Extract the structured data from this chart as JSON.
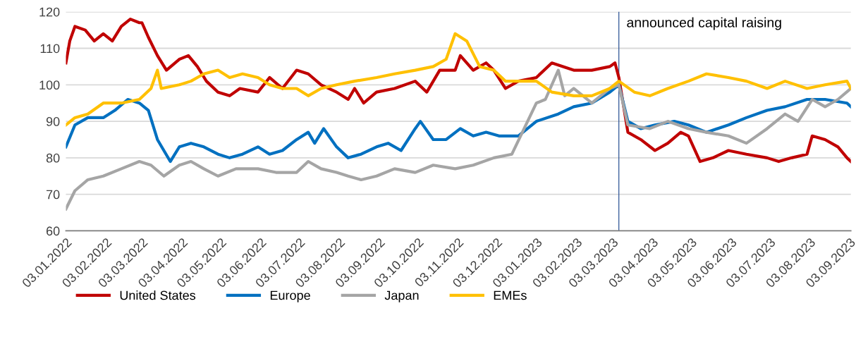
{
  "chart_data": {
    "type": "line",
    "xlim": [
      "2022-01-03",
      "2023-09-04"
    ],
    "xticks": [
      {
        "value": "2022-01-03",
        "label": "03.01.2022"
      },
      {
        "value": "2022-02-03",
        "label": "03.02.2022"
      },
      {
        "value": "2022-03-03",
        "label": "03.03.2022"
      },
      {
        "value": "2022-04-03",
        "label": "03.04.2022"
      },
      {
        "value": "2022-05-03",
        "label": "03.05.2022"
      },
      {
        "value": "2022-06-03",
        "label": "03.06.2022"
      },
      {
        "value": "2022-07-03",
        "label": "03.07.2022"
      },
      {
        "value": "2022-08-03",
        "label": "03.08.2022"
      },
      {
        "value": "2022-09-03",
        "label": "03.09.2022"
      },
      {
        "value": "2022-10-03",
        "label": "03.10.2022"
      },
      {
        "value": "2022-11-03",
        "label": "03.11.2022"
      },
      {
        "value": "2022-12-03",
        "label": "03.12.2022"
      },
      {
        "value": "2023-01-03",
        "label": "03.01.2023"
      },
      {
        "value": "2023-02-03",
        "label": "03.02.2023"
      },
      {
        "value": "2023-03-03",
        "label": "03.03.2023"
      },
      {
        "value": "2023-04-03",
        "label": "03.04.2023"
      },
      {
        "value": "2023-05-03",
        "label": "03.05.2023"
      },
      {
        "value": "2023-06-03",
        "label": "03.06.2023"
      },
      {
        "value": "2023-07-03",
        "label": "03.07.2023"
      },
      {
        "value": "2023-08-03",
        "label": "03.08.2023"
      },
      {
        "value": "2023-09-03",
        "label": "03.09.2023"
      }
    ],
    "ylim": [
      60,
      120
    ],
    "yticks": [
      60,
      70,
      80,
      90,
      100,
      110,
      120
    ],
    "grid": "y",
    "legend": "bottom",
    "line_style": "solid",
    "marker": "none",
    "ref_lines": [
      {
        "axis": "x",
        "value": "2023-03-08",
        "label": "announced capital raising",
        "color": "#2f5597"
      }
    ],
    "series": [
      {
        "name": "United States",
        "color": "#c00000",
        "x": [
          "2022-01-03",
          "2022-01-06",
          "2022-01-10",
          "2022-01-18",
          "2022-01-25",
          "2022-02-01",
          "2022-02-08",
          "2022-02-15",
          "2022-02-22",
          "2022-03-01",
          "2022-03-03",
          "2022-03-08",
          "2022-03-15",
          "2022-03-22",
          "2022-04-01",
          "2022-04-08",
          "2022-04-15",
          "2022-04-22",
          "2022-05-01",
          "2022-05-10",
          "2022-05-18",
          "2022-06-01",
          "2022-06-10",
          "2022-06-20",
          "2022-07-01",
          "2022-07-10",
          "2022-07-20",
          "2022-08-01",
          "2022-08-10",
          "2022-08-15",
          "2022-08-22",
          "2022-09-01",
          "2022-09-15",
          "2022-10-01",
          "2022-10-10",
          "2022-10-20",
          "2022-11-01",
          "2022-11-05",
          "2022-11-15",
          "2022-11-25",
          "2022-12-01",
          "2022-12-10",
          "2022-12-20",
          "2023-01-03",
          "2023-01-15",
          "2023-02-01",
          "2023-02-15",
          "2023-03-01",
          "2023-03-05",
          "2023-03-08",
          "2023-03-15",
          "2023-03-25",
          "2023-04-05",
          "2023-04-15",
          "2023-04-25",
          "2023-05-01",
          "2023-05-10",
          "2023-05-20",
          "2023-06-01",
          "2023-06-15",
          "2023-07-01",
          "2023-07-10",
          "2023-07-20",
          "2023-08-01",
          "2023-08-05",
          "2023-08-15",
          "2023-08-25",
          "2023-09-01",
          "2023-09-04"
        ],
        "values": [
          106,
          112,
          116,
          115,
          112,
          114,
          112,
          116,
          118,
          117,
          117,
          113,
          108,
          104,
          107,
          108,
          105,
          101,
          98,
          97,
          99,
          98,
          102,
          99,
          104,
          103,
          100,
          98,
          96,
          99,
          95,
          98,
          99,
          101,
          98,
          104,
          104,
          108,
          104,
          106,
          104,
          99,
          101,
          102,
          106,
          104,
          104,
          105,
          106,
          102,
          87,
          85,
          82,
          84,
          87,
          86,
          79,
          80,
          82,
          81,
          80,
          79,
          80,
          81,
          86,
          85,
          83,
          80,
          79
        ]
      },
      {
        "name": "Europe",
        "color": "#0070c0",
        "x": [
          "2022-01-03",
          "2022-01-10",
          "2022-01-20",
          "2022-02-01",
          "2022-02-10",
          "2022-02-20",
          "2022-03-01",
          "2022-03-08",
          "2022-03-15",
          "2022-03-25",
          "2022-04-01",
          "2022-04-10",
          "2022-04-20",
          "2022-05-01",
          "2022-05-10",
          "2022-05-20",
          "2022-06-01",
          "2022-06-10",
          "2022-06-20",
          "2022-07-01",
          "2022-07-10",
          "2022-07-15",
          "2022-07-22",
          "2022-08-01",
          "2022-08-10",
          "2022-08-20",
          "2022-09-01",
          "2022-09-10",
          "2022-09-20",
          "2022-10-01",
          "2022-10-05",
          "2022-10-15",
          "2022-10-25",
          "2022-11-05",
          "2022-11-15",
          "2022-11-25",
          "2022-12-05",
          "2022-12-20",
          "2023-01-03",
          "2023-01-20",
          "2023-02-01",
          "2023-02-15",
          "2023-03-01",
          "2023-03-08",
          "2023-03-15",
          "2023-03-25",
          "2023-04-05",
          "2023-04-20",
          "2023-05-01",
          "2023-05-15",
          "2023-06-01",
          "2023-06-15",
          "2023-07-01",
          "2023-07-15",
          "2023-08-01",
          "2023-08-15",
          "2023-09-01",
          "2023-09-04"
        ],
        "values": [
          83,
          89,
          91,
          91,
          93,
          96,
          95,
          93,
          85,
          79,
          83,
          84,
          83,
          81,
          80,
          81,
          83,
          81,
          82,
          85,
          87,
          84,
          88,
          83,
          80,
          81,
          83,
          84,
          82,
          88,
          90,
          85,
          85,
          88,
          86,
          87,
          86,
          86,
          90,
          92,
          94,
          95,
          98,
          100,
          90,
          88,
          89,
          90,
          89,
          87,
          89,
          91,
          93,
          94,
          96,
          96,
          95,
          94
        ]
      },
      {
        "name": "Japan",
        "color": "#a5a5a5",
        "x": [
          "2022-01-03",
          "2022-01-10",
          "2022-01-20",
          "2022-02-01",
          "2022-02-15",
          "2022-03-01",
          "2022-03-10",
          "2022-03-20",
          "2022-04-01",
          "2022-04-10",
          "2022-04-20",
          "2022-05-01",
          "2022-05-15",
          "2022-06-01",
          "2022-06-15",
          "2022-07-01",
          "2022-07-10",
          "2022-07-20",
          "2022-08-01",
          "2022-08-10",
          "2022-08-20",
          "2022-09-01",
          "2022-09-15",
          "2022-10-01",
          "2022-10-15",
          "2022-11-01",
          "2022-11-15",
          "2022-12-01",
          "2022-12-15",
          "2023-01-03",
          "2023-01-10",
          "2023-01-20",
          "2023-01-25",
          "2023-02-01",
          "2023-02-15",
          "2023-03-01",
          "2023-03-08",
          "2023-03-15",
          "2023-04-01",
          "2023-04-15",
          "2023-05-01",
          "2023-05-15",
          "2023-06-01",
          "2023-06-15",
          "2023-07-01",
          "2023-07-15",
          "2023-07-25",
          "2023-08-05",
          "2023-08-15",
          "2023-08-25",
          "2023-09-04"
        ],
        "values": [
          66,
          71,
          74,
          75,
          77,
          79,
          78,
          75,
          78,
          79,
          77,
          75,
          77,
          77,
          76,
          76,
          79,
          77,
          76,
          75,
          74,
          75,
          77,
          76,
          78,
          77,
          78,
          80,
          81,
          95,
          96,
          104,
          97,
          99,
          95,
          99,
          100,
          89,
          88,
          90,
          88,
          87,
          86,
          84,
          88,
          92,
          90,
          96,
          94,
          96,
          99
        ]
      },
      {
        "name": "EMEs",
        "color": "#ffc000",
        "x": [
          "2022-01-03",
          "2022-01-10",
          "2022-01-20",
          "2022-02-01",
          "2022-02-15",
          "2022-03-01",
          "2022-03-10",
          "2022-03-15",
          "2022-03-18",
          "2022-04-01",
          "2022-04-10",
          "2022-04-20",
          "2022-05-01",
          "2022-05-10",
          "2022-05-20",
          "2022-06-01",
          "2022-06-10",
          "2022-06-20",
          "2022-07-01",
          "2022-07-10",
          "2022-07-20",
          "2022-08-01",
          "2022-08-15",
          "2022-09-01",
          "2022-09-15",
          "2022-10-01",
          "2022-10-15",
          "2022-10-25",
          "2022-11-01",
          "2022-11-10",
          "2022-11-20",
          "2022-12-01",
          "2022-12-10",
          "2022-12-20",
          "2023-01-03",
          "2023-01-15",
          "2023-02-01",
          "2023-02-15",
          "2023-03-01",
          "2023-03-08",
          "2023-03-20",
          "2023-04-01",
          "2023-04-15",
          "2023-05-01",
          "2023-05-15",
          "2023-06-01",
          "2023-06-15",
          "2023-07-01",
          "2023-07-15",
          "2023-08-01",
          "2023-08-15",
          "2023-09-01",
          "2023-09-04"
        ],
        "values": [
          89,
          91,
          92,
          95,
          95,
          96,
          99,
          104,
          99,
          100,
          101,
          103,
          104,
          102,
          103,
          102,
          100,
          99,
          99,
          97,
          99,
          100,
          101,
          102,
          103,
          104,
          105,
          107,
          114,
          112,
          105,
          104,
          101,
          101,
          101,
          98,
          97,
          97,
          99,
          101,
          98,
          97,
          99,
          101,
          103,
          102,
          101,
          99,
          101,
          99,
          100,
          101,
          99
        ]
      }
    ]
  }
}
